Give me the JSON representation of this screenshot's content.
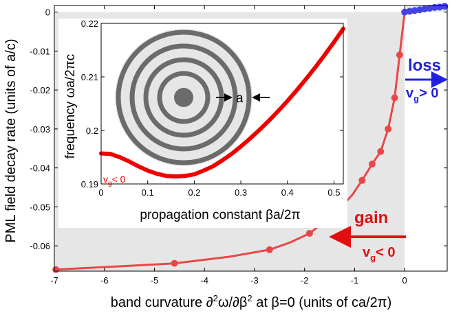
{
  "chart_data": [
    {
      "type": "line",
      "xlabel": {
        "prefix": "band curvature ",
        "sup1": "2",
        "mid": "ω/∂β",
        "sup2": "2",
        "suffix": " at β=0 (units of ca/2π)",
        "partial": "∂"
      },
      "ylabel": "PML field decay rate (units of a/c)",
      "xlim": [
        -7,
        0.85
      ],
      "ylim": [
        -0.0665,
        0.0017
      ],
      "xticks": [
        -7,
        -6,
        -5,
        -4,
        -3,
        -2,
        -1,
        0
      ],
      "yticks": [
        0,
        -0.01,
        -0.02,
        -0.03,
        -0.04,
        -0.05,
        -0.06
      ],
      "ytick_labels": [
        "0",
        "-0.01",
        "-0.02",
        "-0.03",
        "-0.04",
        "-0.05",
        "-0.06"
      ],
      "grid": false,
      "shaded_regions": [
        {
          "x": [
            -7,
            0
          ],
          "y": [
            -0.0665,
            0
          ],
          "color": "#e6e6e6"
        },
        {
          "x": [
            0,
            0.85
          ],
          "y": [
            0,
            0.0017
          ],
          "color": "#e6e6e6"
        }
      ],
      "series": [
        {
          "color": "#e8474a",
          "line": true,
          "x": [
            -6.97,
            -5.6,
            -4.6,
            -3.5,
            -2.7,
            -2.3,
            -1.9,
            -1.6,
            -1.3,
            -1.05,
            -0.85,
            -0.65,
            -0.48,
            -0.33,
            -0.2,
            -0.1,
            0.0
          ],
          "y": [
            -0.0661,
            -0.0652,
            -0.0645,
            -0.0628,
            -0.061,
            -0.0592,
            -0.0568,
            -0.0538,
            -0.0504,
            -0.047,
            -0.0432,
            -0.039,
            -0.0358,
            -0.03,
            -0.022,
            -0.011,
            0.0
          ],
          "markers": [
            0,
            2,
            4,
            6,
            8,
            10,
            11,
            12,
            13,
            14,
            15
          ]
        },
        {
          "color": "#4343e6",
          "line": true,
          "x": [
            0.0,
            0.1,
            0.2,
            0.3,
            0.4,
            0.5,
            0.6,
            0.7,
            0.8,
            0.85
          ],
          "y": [
            0.0,
            0.0002,
            0.0004,
            0.0006,
            0.0008,
            0.001,
            0.0012,
            0.0013,
            0.0015,
            0.0016
          ],
          "markers": [
            0,
            1,
            2,
            3,
            4,
            5,
            6,
            7,
            8
          ]
        }
      ],
      "annotations": [
        {
          "text": "loss",
          "color": "#2020e0",
          "arrow": "right"
        },
        {
          "text_main": "v",
          "text_sub": "g",
          "text_rest": "> 0",
          "color": "#2020e0"
        },
        {
          "text": "gain",
          "color": "#e01010",
          "arrow": "left"
        },
        {
          "text_main": "v",
          "text_sub": "g",
          "text_rest": "< 0",
          "color": "#e01010"
        }
      ]
    },
    {
      "type": "line",
      "xlabel": "propagation constant βa/2π",
      "ylabel": "frequency ωa/2πc",
      "xlim": [
        0,
        0.52
      ],
      "ylim": [
        0.19,
        0.22
      ],
      "xticks": [
        0,
        0.1,
        0.2,
        0.3,
        0.4,
        0.5
      ],
      "yticks": [
        0.19,
        0.2,
        0.21,
        0.22
      ],
      "ytick_labels": [
        "0.19",
        "0.2",
        "0.21",
        "0.22"
      ],
      "grid": false,
      "series": [
        {
          "color": "#ee0000",
          "x": [
            0.0,
            0.02,
            0.04,
            0.06,
            0.08,
            0.1,
            0.12,
            0.14,
            0.16,
            0.18,
            0.2,
            0.22,
            0.24,
            0.26,
            0.28,
            0.3,
            0.32,
            0.34,
            0.36,
            0.38,
            0.4,
            0.42,
            0.44,
            0.46,
            0.48,
            0.5,
            0.52
          ],
          "y": [
            0.1957,
            0.1956,
            0.195,
            0.1942,
            0.1933,
            0.1925,
            0.1919,
            0.1915,
            0.1914,
            0.1915,
            0.1918,
            0.1925,
            0.1933,
            0.1944,
            0.1956,
            0.197,
            0.1985,
            0.2001,
            0.2018,
            0.2036,
            0.2055,
            0.2075,
            0.2096,
            0.2118,
            0.2141,
            0.2165,
            0.219
          ]
        }
      ],
      "annotations": [
        {
          "text_main": "v",
          "text_sub": "g",
          "text_rest": "< 0",
          "color": "#ee0000"
        },
        {
          "text": "a",
          "color": "#000000"
        }
      ],
      "bragg_fiber": {
        "ring_count": 4,
        "ring_color": "#6b6b6b",
        "fill_color": "#e6e6e6",
        "core_color": "#6b6b6b"
      }
    }
  ]
}
